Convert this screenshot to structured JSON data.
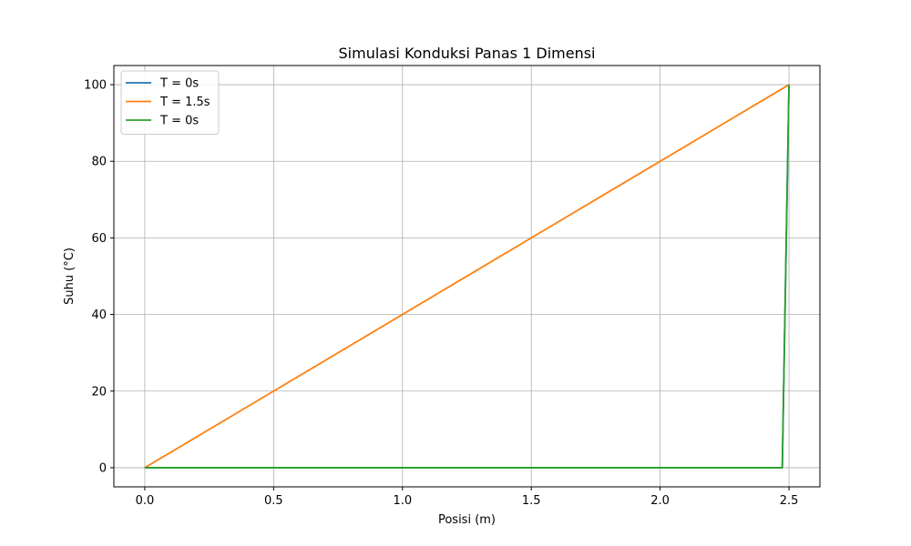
{
  "chart_data": {
    "type": "line",
    "title": "Simulasi Konduksi Panas 1 Dimensi",
    "xlabel": "Posisi (m)",
    "ylabel": "Suhu (°C)",
    "xlim": [
      -0.12,
      2.62
    ],
    "ylim": [
      -5,
      105
    ],
    "xticks": [
      0.0,
      0.5,
      1.0,
      1.5,
      2.0,
      2.5
    ],
    "xtick_labels": [
      "0.0",
      "0.5",
      "1.0",
      "1.5",
      "2.0",
      "2.5"
    ],
    "yticks": [
      0,
      20,
      40,
      60,
      80,
      100
    ],
    "ytick_labels": [
      "0",
      "20",
      "40",
      "60",
      "80",
      "100"
    ],
    "grid": true,
    "legend_position": "top-left",
    "series": [
      {
        "name": "T = 0s",
        "color": "#1f77b4",
        "x": [
          0.0,
          2.474,
          2.5
        ],
        "y": [
          0,
          0,
          100
        ]
      },
      {
        "name": "T = 1.5s",
        "color": "#ff7f0e",
        "x": [
          0.0,
          2.5
        ],
        "y": [
          0,
          100
        ]
      },
      {
        "name": "T = 0s",
        "color": "#2ca02c",
        "x": [
          0.0,
          2.474,
          2.5
        ],
        "y": [
          0,
          0,
          100
        ]
      }
    ]
  }
}
